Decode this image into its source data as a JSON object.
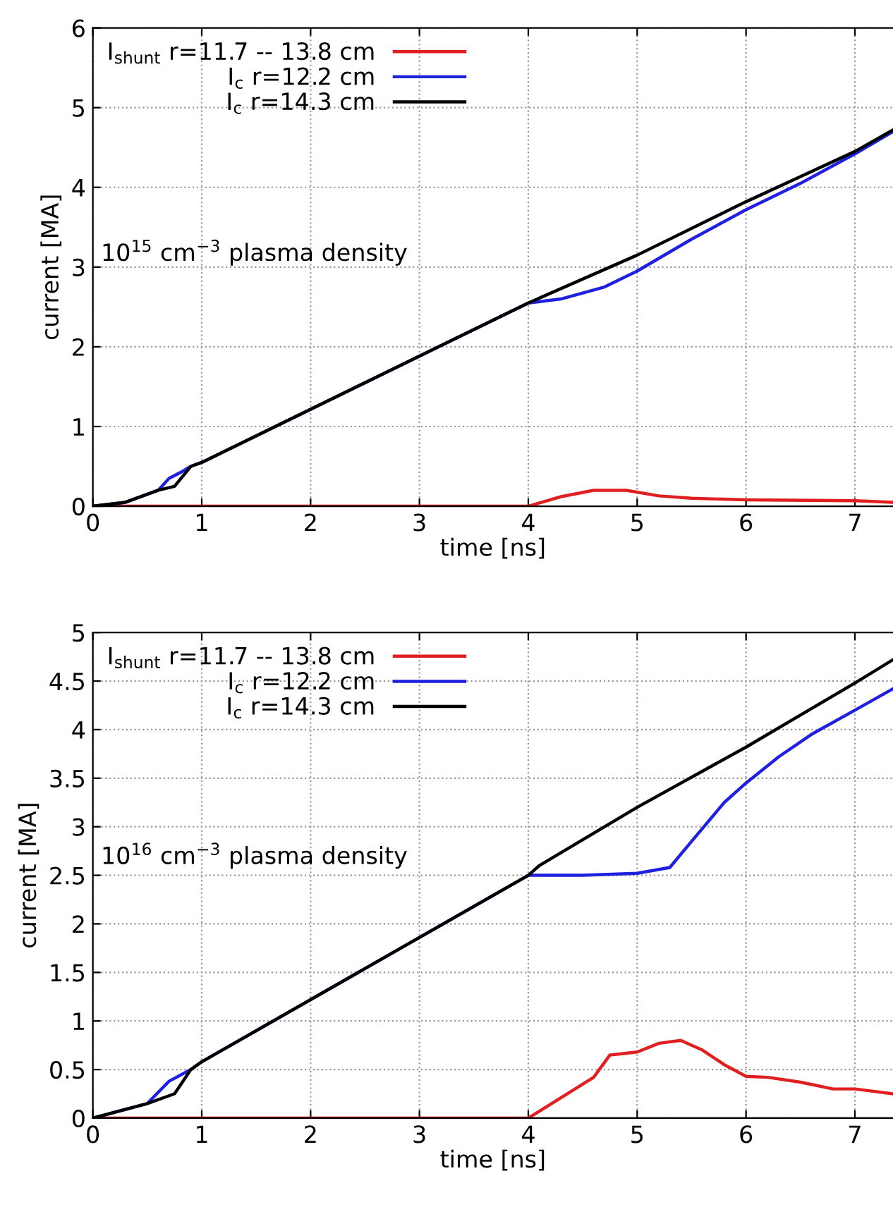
{
  "chart_data": [
    {
      "type": "line",
      "xlabel": "time [ns]",
      "ylabel": "current [MA]",
      "xlim": [
        0,
        7.35
      ],
      "ylim": [
        0,
        6
      ],
      "xticks": [
        0,
        1,
        2,
        3,
        4,
        5,
        6,
        7
      ],
      "yticks": [
        0,
        1,
        2,
        3,
        4,
        5,
        6
      ],
      "grid": true,
      "legend": "top left",
      "line_style": "solid",
      "annotations": [
        "10$^{15}$ cm$^{−3}$ plasma density"
      ],
      "series": [
        {
          "name": "I$_{shunt}$ r=11.7 -- 13.8 cm",
          "color": "#e02020",
          "x": [
            0,
            0.9,
            4,
            4.3,
            4.6,
            4.9,
            5.2,
            5.5,
            6,
            7,
            7.35
          ],
          "values": [
            0,
            0,
            0,
            0.12,
            0.2,
            0.2,
            0.13,
            0.1,
            0.08,
            0.07,
            0.05
          ]
        },
        {
          "name": "I$_{c}$ r=12.2 cm",
          "color": "#2020e0",
          "x": [
            0,
            0.3,
            0.6,
            0.7,
            0.8,
            0.9,
            1,
            4,
            4.3,
            4.7,
            5,
            5.5,
            6,
            6.5,
            7,
            7.35
          ],
          "values": [
            0,
            0.05,
            0.2,
            0.35,
            0.42,
            0.5,
            0.55,
            2.55,
            2.6,
            2.75,
            2.95,
            3.35,
            3.72,
            4.05,
            4.42,
            4.7
          ]
        },
        {
          "name": "I$_{c}$ r=14.3 cm",
          "color": "#000000",
          "x": [
            0,
            0.3,
            0.6,
            0.75,
            0.9,
            1,
            4,
            5,
            6,
            7,
            7.35
          ],
          "values": [
            0,
            0.05,
            0.2,
            0.25,
            0.5,
            0.55,
            2.55,
            3.15,
            3.82,
            4.45,
            4.72
          ]
        }
      ]
    },
    {
      "type": "line",
      "xlabel": "time [ns]",
      "ylabel": "current [MA]",
      "xlim": [
        0,
        7.35
      ],
      "ylim": [
        0,
        5
      ],
      "xticks": [
        0,
        1,
        2,
        3,
        4,
        5,
        6,
        7
      ],
      "yticks": [
        0,
        0.5,
        1,
        1.5,
        2,
        2.5,
        3,
        3.5,
        4,
        4.5,
        5
      ],
      "grid": true,
      "legend": "top left",
      "line_style": "solid",
      "annotations": [
        "10$^{16}$ cm$^{−3}$ plasma density"
      ],
      "series": [
        {
          "name": "I$_{shunt}$ r=11.7 -- 13.8 cm",
          "color": "#e02020",
          "x": [
            0,
            4,
            4.6,
            4.75,
            5,
            5.2,
            5.4,
            5.6,
            5.8,
            6,
            6.2,
            6.5,
            6.8,
            7,
            7.35
          ],
          "values": [
            0,
            0,
            0.42,
            0.65,
            0.68,
            0.77,
            0.8,
            0.7,
            0.55,
            0.43,
            0.42,
            0.37,
            0.3,
            0.3,
            0.25
          ]
        },
        {
          "name": "I$_{c}$ r=12.2 cm",
          "color": "#2020e0",
          "x": [
            0,
            0.5,
            0.7,
            0.9,
            1,
            4,
            4.5,
            5,
            5.3,
            5.5,
            5.8,
            6,
            6.3,
            6.6,
            7,
            7.35
          ],
          "values": [
            0,
            0.15,
            0.38,
            0.5,
            0.58,
            2.5,
            2.5,
            2.52,
            2.58,
            2.85,
            3.25,
            3.45,
            3.72,
            3.95,
            4.2,
            4.42
          ]
        },
        {
          "name": "I$_{c}$ r=14.3 cm",
          "color": "#000000",
          "x": [
            0,
            0.5,
            0.75,
            0.9,
            1,
            4,
            4.1,
            5,
            6,
            7,
            7.35
          ],
          "values": [
            0,
            0.15,
            0.25,
            0.5,
            0.58,
            2.5,
            2.6,
            3.2,
            3.82,
            4.48,
            4.72
          ]
        }
      ]
    }
  ]
}
